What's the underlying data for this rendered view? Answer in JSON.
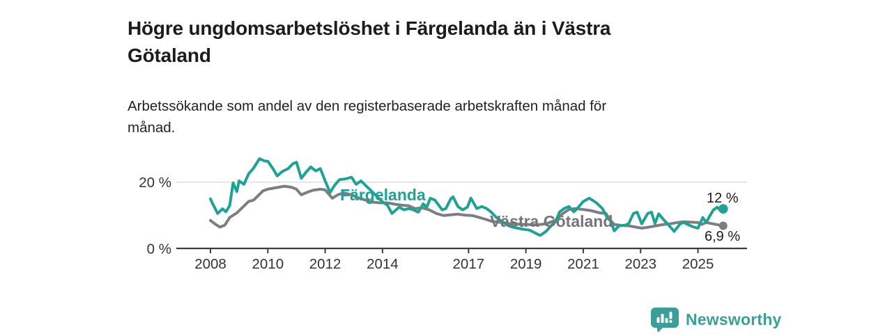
{
  "header": {
    "title_lines": [
      "Högre ungdomsarbetslöshet i Färgelanda än i Västra",
      "Götaland"
    ],
    "subtitle_lines": [
      "Arbetssökande som andel av den registerbaserade arbetskraften månad för",
      "månad."
    ]
  },
  "colors": {
    "background": "#ffffff",
    "title_text": "#1c1c1a",
    "subtitle_text": "#222222",
    "accent_teal": "#1fa294",
    "line_gray": "#7d7e81",
    "series_label_gray": "#747579",
    "value_label_text": "#1c1c1a",
    "axis_text": "#333333",
    "axis_line": "#3d3d3d",
    "gridline": "#d8d8d8",
    "brand_teal": "#399f97"
  },
  "chart_data": {
    "type": "line",
    "title": "Högre ungdomsarbetslöshet i Färgelanda än i Västra Götaland",
    "subtitle": "Arbetssökande som andel av den registerbaserade arbetskraften månad för månad.",
    "unit": "%",
    "grid": "horizontal-20-only",
    "legend_position": "inline-labels-on-lines",
    "x_axis": {
      "ticks": [
        2008,
        2010,
        2012,
        2014,
        2017,
        2019,
        2021,
        2023,
        2025
      ],
      "range": [
        2007.8,
        2026.7
      ]
    },
    "y_axis": {
      "ticks": [
        {
          "value": 0,
          "label": "0 %"
        },
        {
          "value": 20,
          "label": "20 %"
        }
      ],
      "range": [
        0,
        31
      ]
    },
    "series": [
      {
        "id": "fargelanda",
        "name": "Färgelanda",
        "color": "#1fa294",
        "end_label": "12 %",
        "end_value": 12,
        "points": [
          [
            2008.0,
            15.0
          ],
          [
            2008.08,
            13.5
          ],
          [
            2008.25,
            10.6
          ],
          [
            2008.42,
            12.0
          ],
          [
            2008.54,
            11.1
          ],
          [
            2008.67,
            13.0
          ],
          [
            2008.79,
            19.8
          ],
          [
            2008.92,
            17.2
          ],
          [
            2009.0,
            20.4
          ],
          [
            2009.17,
            19.4
          ],
          [
            2009.33,
            22.5
          ],
          [
            2009.5,
            24.2
          ],
          [
            2009.71,
            27.1
          ],
          [
            2009.88,
            26.4
          ],
          [
            2010.0,
            26.3
          ],
          [
            2010.17,
            24.2
          ],
          [
            2010.33,
            21.9
          ],
          [
            2010.5,
            23.2
          ],
          [
            2010.71,
            24.1
          ],
          [
            2010.88,
            25.6
          ],
          [
            2011.0,
            26.0
          ],
          [
            2011.17,
            21.2
          ],
          [
            2011.33,
            23.0
          ],
          [
            2011.5,
            24.6
          ],
          [
            2011.67,
            23.4
          ],
          [
            2011.83,
            24.1
          ],
          [
            2012.0,
            20.4
          ],
          [
            2012.17,
            16.9
          ],
          [
            2012.33,
            19.1
          ],
          [
            2012.5,
            20.8
          ],
          [
            2012.71,
            21.0
          ],
          [
            2012.92,
            21.5
          ],
          [
            2013.08,
            19.4
          ],
          [
            2013.25,
            20.4
          ],
          [
            2013.5,
            18.3
          ],
          [
            2013.75,
            16.2
          ],
          [
            2014.0,
            14.1
          ],
          [
            2014.17,
            13.1
          ],
          [
            2014.33,
            10.6
          ],
          [
            2014.58,
            12.5
          ],
          [
            2014.75,
            11.7
          ],
          [
            2014.92,
            12.1
          ],
          [
            2015.08,
            11.7
          ],
          [
            2015.25,
            11.0
          ],
          [
            2015.42,
            13.5
          ],
          [
            2015.54,
            12.5
          ],
          [
            2015.67,
            15.2
          ],
          [
            2015.83,
            14.6
          ],
          [
            2015.96,
            13.1
          ],
          [
            2016.08,
            11.7
          ],
          [
            2016.21,
            12.1
          ],
          [
            2016.38,
            15.0
          ],
          [
            2016.46,
            15.6
          ],
          [
            2016.63,
            12.7
          ],
          [
            2016.79,
            11.7
          ],
          [
            2016.96,
            12.5
          ],
          [
            2017.08,
            15.2
          ],
          [
            2017.29,
            12.1
          ],
          [
            2017.46,
            12.7
          ],
          [
            2017.63,
            12.1
          ],
          [
            2017.79,
            11.0
          ],
          [
            2017.96,
            9.5
          ],
          [
            2018.21,
            7.9
          ],
          [
            2018.46,
            6.7
          ],
          [
            2018.71,
            6.2
          ],
          [
            2018.96,
            5.8
          ],
          [
            2019.13,
            5.6
          ],
          [
            2019.29,
            4.9
          ],
          [
            2019.5,
            4.0
          ],
          [
            2019.71,
            5.3
          ],
          [
            2019.88,
            6.9
          ],
          [
            2020.04,
            8.2
          ],
          [
            2020.17,
            11.0
          ],
          [
            2020.33,
            12.1
          ],
          [
            2020.5,
            12.7
          ],
          [
            2020.67,
            11.1
          ],
          [
            2020.83,
            12.5
          ],
          [
            2021.0,
            14.2
          ],
          [
            2021.21,
            15.2
          ],
          [
            2021.46,
            13.8
          ],
          [
            2021.67,
            12.1
          ],
          [
            2021.83,
            9.4
          ],
          [
            2021.96,
            8.3
          ],
          [
            2022.08,
            5.4
          ],
          [
            2022.25,
            6.9
          ],
          [
            2022.46,
            7.1
          ],
          [
            2022.58,
            7.5
          ],
          [
            2022.75,
            10.6
          ],
          [
            2022.88,
            11.0
          ],
          [
            2023.04,
            7.5
          ],
          [
            2023.25,
            10.6
          ],
          [
            2023.38,
            11.0
          ],
          [
            2023.5,
            7.6
          ],
          [
            2023.63,
            10.5
          ],
          [
            2023.83,
            8.5
          ],
          [
            2024.0,
            6.9
          ],
          [
            2024.17,
            5.2
          ],
          [
            2024.38,
            7.5
          ],
          [
            2024.5,
            7.9
          ],
          [
            2024.67,
            7.2
          ],
          [
            2024.83,
            6.6
          ],
          [
            2025.0,
            6.2
          ],
          [
            2025.17,
            9.4
          ],
          [
            2025.29,
            7.9
          ],
          [
            2025.42,
            10.0
          ],
          [
            2025.54,
            11.7
          ],
          [
            2025.67,
            12.5
          ],
          [
            2025.79,
            11.5
          ],
          [
            2025.88,
            12.0
          ]
        ]
      },
      {
        "id": "vastra-gotaland",
        "name": "Västra Götaland",
        "color": "#7d7e81",
        "end_label": "6,9 %",
        "end_value": 6.9,
        "points": [
          [
            2008.0,
            8.5
          ],
          [
            2008.17,
            7.4
          ],
          [
            2008.33,
            6.5
          ],
          [
            2008.5,
            7.1
          ],
          [
            2008.67,
            9.4
          ],
          [
            2008.92,
            10.8
          ],
          [
            2009.08,
            12.1
          ],
          [
            2009.33,
            14.2
          ],
          [
            2009.5,
            14.6
          ],
          [
            2009.67,
            16.0
          ],
          [
            2009.83,
            17.4
          ],
          [
            2010.0,
            17.9
          ],
          [
            2010.25,
            18.3
          ],
          [
            2010.58,
            18.8
          ],
          [
            2010.83,
            18.5
          ],
          [
            2011.0,
            17.9
          ],
          [
            2011.17,
            16.2
          ],
          [
            2011.38,
            17.0
          ],
          [
            2011.58,
            17.6
          ],
          [
            2011.83,
            17.9
          ],
          [
            2012.0,
            17.7
          ],
          [
            2012.25,
            15.2
          ],
          [
            2012.46,
            16.3
          ],
          [
            2012.67,
            16.8
          ],
          [
            2012.92,
            16.2
          ],
          [
            2013.17,
            15.3
          ],
          [
            2013.42,
            14.6
          ],
          [
            2013.67,
            14.0
          ],
          [
            2013.92,
            13.8
          ],
          [
            2014.17,
            13.8
          ],
          [
            2014.42,
            13.4
          ],
          [
            2014.67,
            13.1
          ],
          [
            2014.92,
            12.9
          ],
          [
            2015.13,
            12.1
          ],
          [
            2015.38,
            12.3
          ],
          [
            2015.63,
            11.7
          ],
          [
            2015.88,
            10.6
          ],
          [
            2016.13,
            10.0
          ],
          [
            2016.38,
            10.2
          ],
          [
            2016.63,
            10.4
          ],
          [
            2016.88,
            10.1
          ],
          [
            2017.13,
            10.0
          ],
          [
            2017.38,
            9.4
          ],
          [
            2017.54,
            9.0
          ],
          [
            2017.79,
            8.3
          ],
          [
            2018.04,
            8.0
          ],
          [
            2018.38,
            7.6
          ],
          [
            2018.71,
            7.4
          ],
          [
            2019.04,
            7.3
          ],
          [
            2019.38,
            7.2
          ],
          [
            2019.71,
            7.5
          ],
          [
            2020.04,
            8.6
          ],
          [
            2020.29,
            10.6
          ],
          [
            2020.5,
            11.8
          ],
          [
            2020.71,
            12.1
          ],
          [
            2021.0,
            11.8
          ],
          [
            2021.25,
            11.5
          ],
          [
            2021.58,
            10.8
          ],
          [
            2021.79,
            10.6
          ],
          [
            2021.92,
            8.8
          ],
          [
            2022.08,
            7.3
          ],
          [
            2022.33,
            7.0
          ],
          [
            2022.58,
            6.9
          ],
          [
            2022.83,
            6.5
          ],
          [
            2023.04,
            6.2
          ],
          [
            2023.29,
            6.5
          ],
          [
            2023.54,
            6.9
          ],
          [
            2023.79,
            7.3
          ],
          [
            2024.04,
            7.5
          ],
          [
            2024.29,
            7.9
          ],
          [
            2024.5,
            8.1
          ],
          [
            2024.75,
            8.0
          ],
          [
            2025.0,
            7.9
          ],
          [
            2025.13,
            7.3
          ],
          [
            2025.29,
            7.9
          ],
          [
            2025.46,
            7.6
          ],
          [
            2025.63,
            7.3
          ],
          [
            2025.88,
            6.9
          ]
        ]
      }
    ]
  },
  "footer": {
    "brand": "Newsworthy"
  }
}
